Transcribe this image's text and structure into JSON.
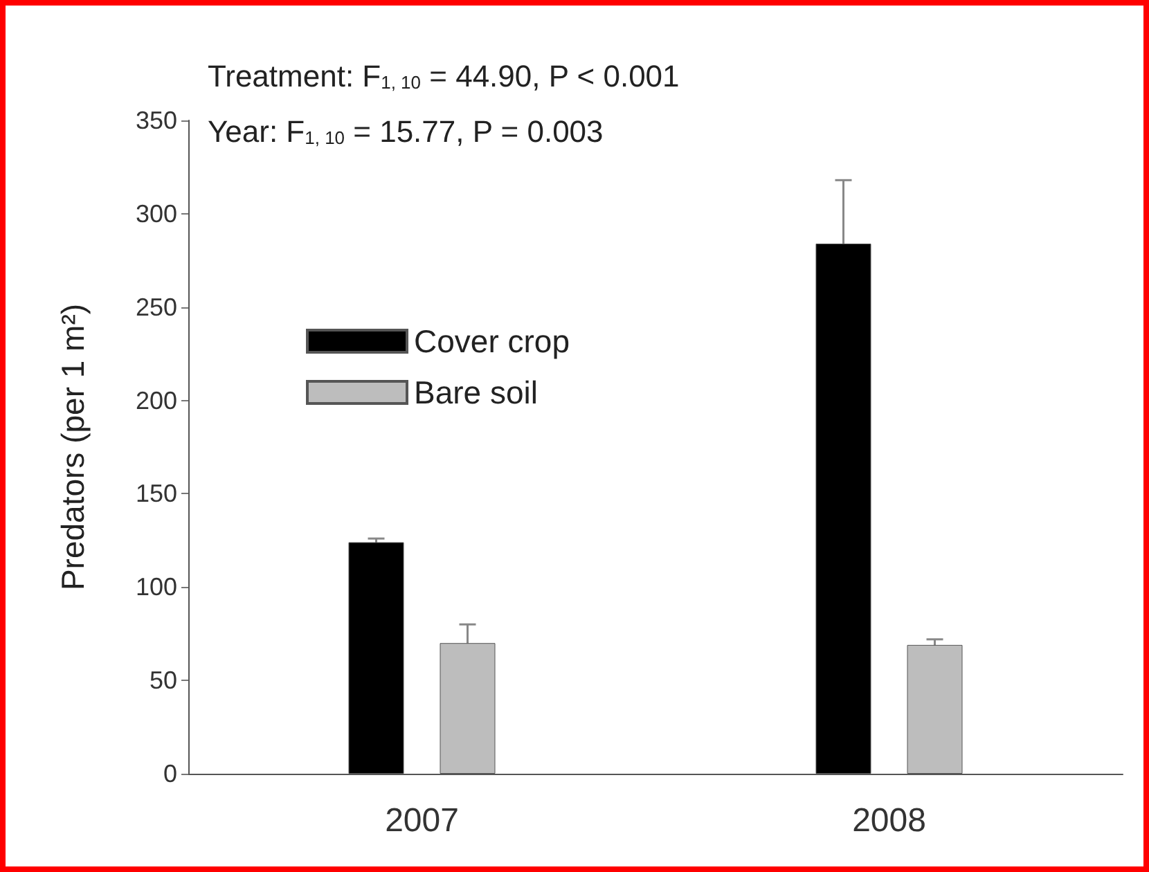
{
  "chart_data": {
    "type": "bar",
    "ylabel": "Predators (per 1 m²)",
    "categories": [
      "2007",
      "2008"
    ],
    "series": [
      {
        "name": "Cover crop",
        "color": "#000000",
        "values": [
          124,
          284
        ],
        "errors": [
          2,
          34
        ]
      },
      {
        "name": "Bare soil",
        "color": "#bdbdbd",
        "values": [
          70,
          69
        ],
        "errors": [
          10,
          3
        ]
      }
    ],
    "ylim": [
      0,
      350
    ],
    "yticks": [
      0,
      50,
      100,
      150,
      200,
      250,
      300,
      350
    ],
    "grid": false,
    "legend": "top left",
    "annotations": [
      "Treatment: F$_{1, 10}$ = 44.90, P < 0.001",
      "Year: F$_{1, 10}$ = 15.77, P = 0.003"
    ]
  }
}
